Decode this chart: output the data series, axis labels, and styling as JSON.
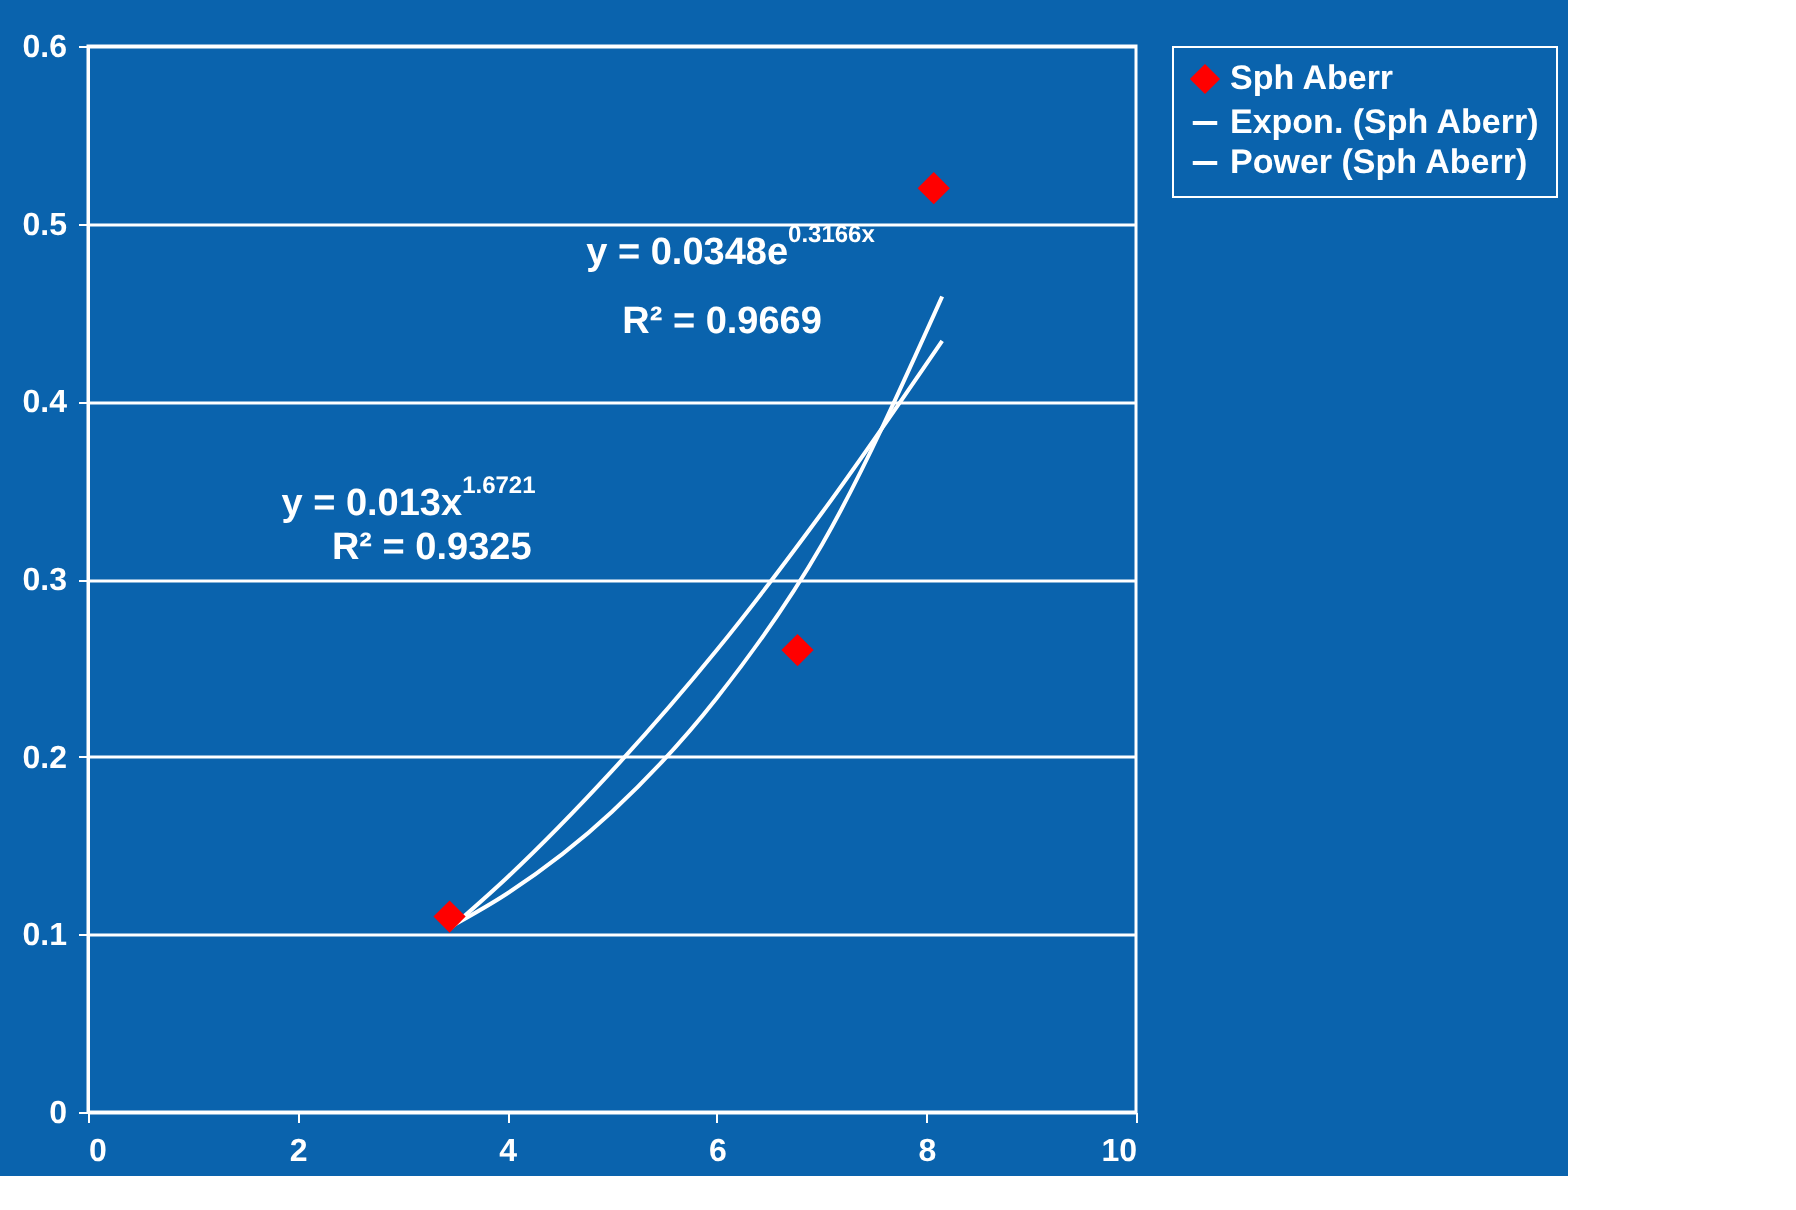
{
  "chart_data": {
    "type": "scatter",
    "series": [
      {
        "name": "Sph Aberr",
        "color": "#ff0000",
        "marker": "diamond",
        "x": [
          3.45,
          6.77,
          8.07
        ],
        "values": [
          0.11,
          0.26,
          0.52
        ]
      },
      {
        "name": "Expon. (Sph Aberr)",
        "type": "line",
        "color": "#ffffff",
        "x": [
          3.45,
          4,
          5,
          6,
          7,
          8.15
        ],
        "values": [
          0.104,
          0.123,
          0.169,
          0.233,
          0.319,
          0.459
        ]
      },
      {
        "name": "Power (Sph Aberr)",
        "type": "line",
        "color": "#ffffff",
        "x": [
          3.45,
          4,
          5,
          6,
          7,
          8.15
        ],
        "values": [
          0.103,
          0.132,
          0.192,
          0.26,
          0.337,
          0.434
        ]
      }
    ],
    "xlim": [
      0,
      10
    ],
    "xticks": [
      0,
      2,
      4,
      6,
      8,
      10
    ],
    "ylim": [
      0,
      0.6
    ],
    "yticks": [
      0,
      0.1,
      0.2,
      0.3,
      0.4,
      0.5,
      0.6
    ],
    "grid": "y",
    "legend": "right",
    "annotations": [
      "y = 0.0348e$^{0.3166x}$",
      "R² = 0.9669",
      "y = 0.013x$^{1.6721}$",
      "R² = 0.9325"
    ]
  }
}
